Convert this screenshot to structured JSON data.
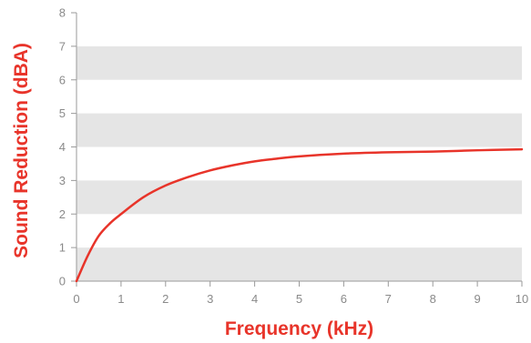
{
  "chart_data": {
    "type": "line",
    "title": "",
    "xlabel": "Frequency (kHz)",
    "ylabel": "Sound Reduction (dBA)",
    "xlim": [
      0,
      10
    ],
    "ylim": [
      0,
      8
    ],
    "x_ticks": [
      "0",
      "1",
      "2",
      "3",
      "4",
      "5",
      "6",
      "7",
      "8",
      "9",
      "10"
    ],
    "y_ticks": [
      "0",
      "1",
      "2",
      "3",
      "4",
      "5",
      "6",
      "7",
      "8"
    ],
    "grid": "alternating horizontal bands",
    "legend": "none",
    "series": [
      {
        "x": [
          0,
          0.25,
          0.5,
          0.75,
          1,
          1.5,
          2,
          2.5,
          3,
          3.5,
          4,
          4.5,
          5,
          6,
          7,
          8,
          9,
          10
        ],
        "y": [
          0,
          0.75,
          1.35,
          1.72,
          2.0,
          2.5,
          2.85,
          3.1,
          3.3,
          3.45,
          3.57,
          3.65,
          3.72,
          3.8,
          3.84,
          3.86,
          3.9,
          3.93
        ]
      }
    ],
    "colors": {
      "line": "#e8342a",
      "band": "#e5e5e5",
      "axis": "#9a9a9a",
      "tick_text": "#8a8a8a",
      "title_text": "#e8342a"
    }
  }
}
